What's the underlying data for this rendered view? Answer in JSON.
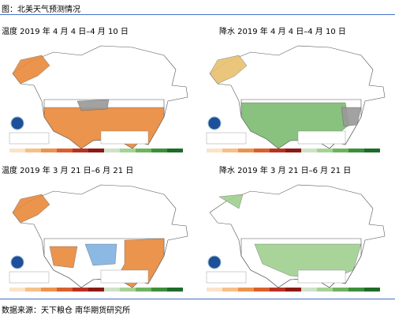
{
  "header": {
    "title": "图：北美天气预测情况"
  },
  "panels": [
    {
      "caption": "温度 2019 年 4 月 4 日–4 月 10 日"
    },
    {
      "caption": "降水 2019 年 4 月 4 日–4 月 10 日"
    },
    {
      "caption": "温度 2019 年 3 月 21 日–6 月 21 日"
    },
    {
      "caption": "降水 2019 年 3 月 21 日–6 月 21 日"
    }
  ],
  "footer": {
    "source": "数据来源：天下粮仓  南华期货研究所"
  }
}
